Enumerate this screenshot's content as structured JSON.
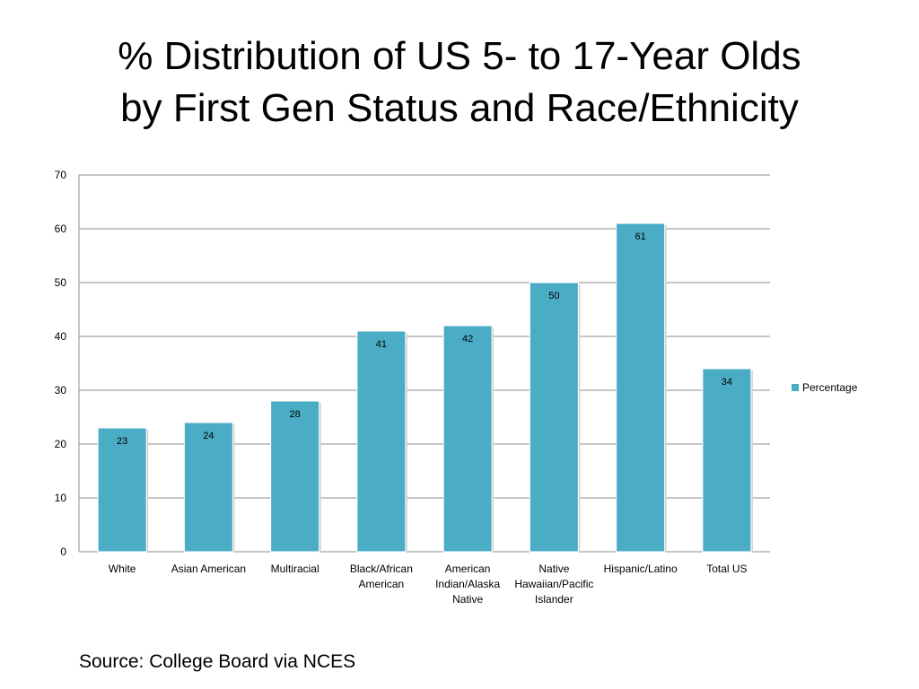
{
  "title": {
    "line1": "% Distribution of US 5- to 17-Year Olds",
    "line2": "by First Gen Status and Race/Ethnicity"
  },
  "source": "Source: College Board via NCES",
  "colors": {
    "bar": "#4bacc6",
    "grid": "#8c8c8c"
  },
  "chart_data": {
    "type": "bar",
    "categories": [
      [
        "White"
      ],
      [
        "Asian American"
      ],
      [
        "Multiracial"
      ],
      [
        "Black/African",
        "American"
      ],
      [
        "American",
        "Indian/Alaska",
        "Native"
      ],
      [
        "Native",
        "Hawaiian/Pacific",
        "Islander"
      ],
      [
        "Hispanic/Latino"
      ],
      [
        "Total US"
      ]
    ],
    "series": [
      {
        "name": "Percentage",
        "values": [
          23,
          24,
          28,
          41,
          42,
          50,
          61,
          34
        ]
      }
    ],
    "ylim": [
      0,
      70
    ],
    "yticks": [
      0,
      10,
      20,
      30,
      40,
      50,
      60,
      70
    ],
    "grid": true,
    "legend": "right"
  }
}
